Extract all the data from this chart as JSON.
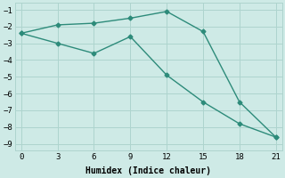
{
  "line1_x": [
    0,
    3,
    6,
    9,
    12,
    15,
    18,
    21
  ],
  "line1_y": [
    -2.4,
    -1.9,
    -1.8,
    -1.5,
    -1.1,
    -2.3,
    -6.5,
    -8.6
  ],
  "line2_x": [
    0,
    3,
    6,
    9,
    12,
    15,
    18,
    21
  ],
  "line2_y": [
    -2.4,
    -3.0,
    -3.6,
    -2.6,
    -4.9,
    -6.5,
    -7.8,
    -8.6
  ],
  "line_color": "#2d8b7a",
  "bg_color": "#ceeae6",
  "grid_color": "#aed4ce",
  "xlabel": "Humidex (Indice chaleur)",
  "xlim": [
    -0.5,
    21.5
  ],
  "ylim": [
    -9.4,
    -0.6
  ],
  "xticks": [
    0,
    3,
    6,
    9,
    12,
    15,
    18,
    21
  ],
  "yticks": [
    -1,
    -2,
    -3,
    -4,
    -5,
    -6,
    -7,
    -8,
    -9
  ],
  "marker": "D",
  "markersize": 2.5,
  "linewidth": 1.0,
  "tick_fontsize": 6.5,
  "xlabel_fontsize": 7.0
}
